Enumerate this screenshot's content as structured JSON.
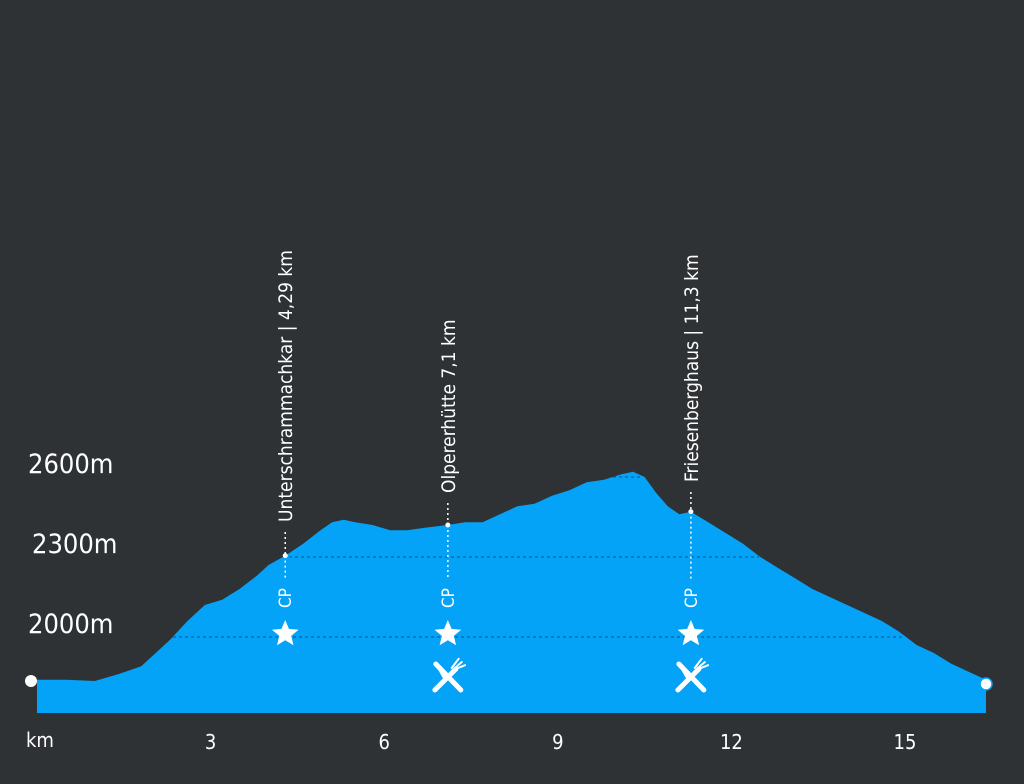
{
  "chart_data": {
    "type": "area",
    "xlabel": "km",
    "xlim": [
      0,
      16.4
    ],
    "ylim": [
      1740,
      2800
    ],
    "x_ticks": [
      3,
      6,
      9,
      12,
      15
    ],
    "x_tick_labels": [
      "3",
      "6",
      "9",
      "12",
      "15"
    ],
    "y_ticks": [
      2000,
      2300,
      2600
    ],
    "y_tick_labels": [
      "2000m",
      "2300m",
      "2600m"
    ],
    "grid_lines": [
      2000,
      2300,
      2600
    ],
    "series": [
      {
        "x": [
          0,
          0.5,
          1.0,
          1.4,
          1.8,
          2.0,
          2.3,
          2.6,
          2.9,
          3.2,
          3.5,
          3.8,
          4.0,
          4.29,
          4.6,
          4.9,
          5.1,
          5.3,
          5.5,
          5.8,
          6.1,
          6.4,
          6.7,
          7.1,
          7.4,
          7.7,
          8.0,
          8.3,
          8.6,
          8.9,
          9.2,
          9.5,
          9.8,
          10.1,
          10.3,
          10.5,
          10.7,
          10.9,
          11.1,
          11.3,
          11.6,
          11.9,
          12.2,
          12.5,
          12.8,
          13.1,
          13.4,
          13.7,
          14.0,
          14.3,
          14.6,
          14.9,
          15.2,
          15.5,
          15.8,
          16.1,
          16.4
        ],
        "y": [
          1840,
          1840,
          1835,
          1860,
          1890,
          1930,
          1990,
          2060,
          2120,
          2140,
          2180,
          2230,
          2270,
          2305,
          2350,
          2400,
          2430,
          2440,
          2430,
          2420,
          2400,
          2400,
          2410,
          2420,
          2430,
          2430,
          2460,
          2490,
          2500,
          2530,
          2550,
          2580,
          2590,
          2610,
          2620,
          2600,
          2540,
          2490,
          2460,
          2470,
          2430,
          2390,
          2350,
          2300,
          2260,
          2220,
          2180,
          2150,
          2120,
          2090,
          2060,
          2020,
          1970,
          1940,
          1900,
          1870,
          1840
        ]
      }
    ],
    "waypoints": [
      {
        "km": 4.29,
        "label": "Unterschrammachkar  |  4,29 km",
        "checkpoint": "CP",
        "icons": [
          "star-icon"
        ]
      },
      {
        "km": 7.1,
        "label": "Olpererhütte 7,1 km",
        "checkpoint": "CP",
        "icons": [
          "star-icon",
          "restaurant-icon"
        ]
      },
      {
        "km": 11.3,
        "label": "Friesenberghaus  |  11,3 km",
        "checkpoint": "CP",
        "icons": [
          "star-icon",
          "restaurant-icon"
        ]
      }
    ],
    "colors": {
      "background": "#2f3235",
      "fill": "#04a3f8",
      "text": "#ffffff"
    }
  }
}
